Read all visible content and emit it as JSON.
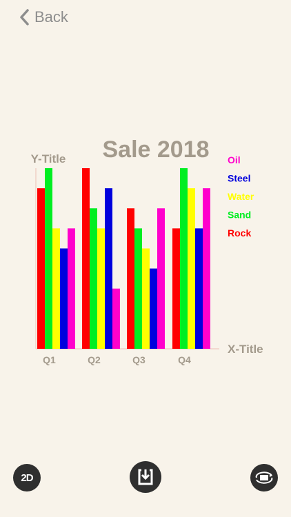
{
  "nav": {
    "back_label": "Back"
  },
  "toolbar": {
    "mode_label": "2D",
    "save_icon": "save-icon",
    "rotate_icon": "rotate-camera-icon"
  },
  "colors": {
    "Rock": "#ff0000",
    "Sand": "#00ee22",
    "Water": "#ffff00",
    "Steel": "#0000dd",
    "Oil": "#ff00cc",
    "text": "#a39a8c"
  },
  "chart_data": {
    "type": "bar",
    "title": "Sale 2018",
    "xlabel": "X-Title",
    "ylabel": "Y-Title",
    "categories": [
      "Q1",
      "Q2",
      "Q3",
      "Q4"
    ],
    "ylim": [
      0,
      9
    ],
    "grid": false,
    "legend_position": "right",
    "legend_order": [
      "Oil",
      "Steel",
      "Water",
      "Sand",
      "Rock"
    ],
    "series": [
      {
        "name": "Rock",
        "values": [
          8,
          9,
          7,
          6
        ]
      },
      {
        "name": "Sand",
        "values": [
          9,
          7,
          6,
          9
        ]
      },
      {
        "name": "Water",
        "values": [
          6,
          6,
          5,
          8
        ]
      },
      {
        "name": "Steel",
        "values": [
          5,
          8,
          4,
          6
        ]
      },
      {
        "name": "Oil",
        "values": [
          6,
          3,
          7,
          8
        ]
      }
    ]
  }
}
